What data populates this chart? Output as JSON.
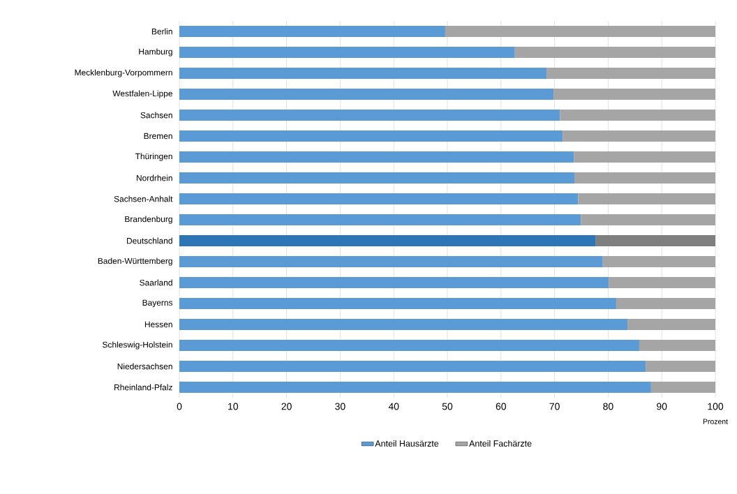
{
  "chart_data": {
    "type": "bar",
    "orientation": "horizontal",
    "stacked": true,
    "categories": [
      "Berlin",
      "Hamburg",
      "Mecklenburg-Vorpommern",
      "Westfalen-Lippe",
      "Sachsen",
      "Bremen",
      "Thüringen",
      "Nordrhein",
      "Sachsen-Anhalt",
      "Brandenburg",
      "Deutschland",
      "Baden-Württemberg",
      "Saarland",
      "Bayerns",
      "Hessen",
      "Schleswig-Holstein",
      "Niedersachsen",
      "Rheinland-Pfalz"
    ],
    "series": [
      {
        "name": "Anteil Hausärzte",
        "color": "#5b9bd5",
        "colors": [
          "#5b9bd5",
          "#5b9bd5",
          "#5b9bd5",
          "#5b9bd5",
          "#5b9bd5",
          "#5b9bd5",
          "#5b9bd5",
          "#5b9bd5",
          "#5b9bd5",
          "#5b9bd5",
          "#2e75b6",
          "#5b9bd5",
          "#5b9bd5",
          "#5b9bd5",
          "#5b9bd5",
          "#5b9bd5",
          "#5b9bd5",
          "#5b9bd5"
        ],
        "values": [
          49.6,
          62.6,
          68.5,
          69.8,
          71.0,
          71.5,
          73.6,
          73.7,
          74.4,
          74.9,
          77.7,
          79.0,
          80.1,
          81.5,
          83.6,
          85.8,
          87.0,
          88.0
        ]
      },
      {
        "name": "Anteil Fachärzte",
        "color": "#a5a5a5",
        "colors": [
          "#a5a5a5",
          "#a5a5a5",
          "#a5a5a5",
          "#a5a5a5",
          "#a5a5a5",
          "#a5a5a5",
          "#a5a5a5",
          "#a5a5a5",
          "#a5a5a5",
          "#a5a5a5",
          "#7f7f7f",
          "#a5a5a5",
          "#a5a5a5",
          "#a5a5a5",
          "#a5a5a5",
          "#a5a5a5",
          "#a5a5a5",
          "#a5a5a5"
        ],
        "values": [
          50.4,
          37.4,
          31.5,
          30.2,
          29.0,
          28.5,
          26.4,
          26.3,
          25.6,
          25.1,
          22.3,
          21.0,
          19.9,
          18.5,
          16.4,
          14.2,
          13.0,
          12.0
        ]
      }
    ],
    "xlabel": "Prozent",
    "xlim": [
      0,
      100
    ],
    "xticks": [
      0,
      10,
      20,
      30,
      40,
      50,
      60,
      70,
      80,
      90,
      100
    ],
    "grid": "x",
    "legend": "bottom"
  }
}
